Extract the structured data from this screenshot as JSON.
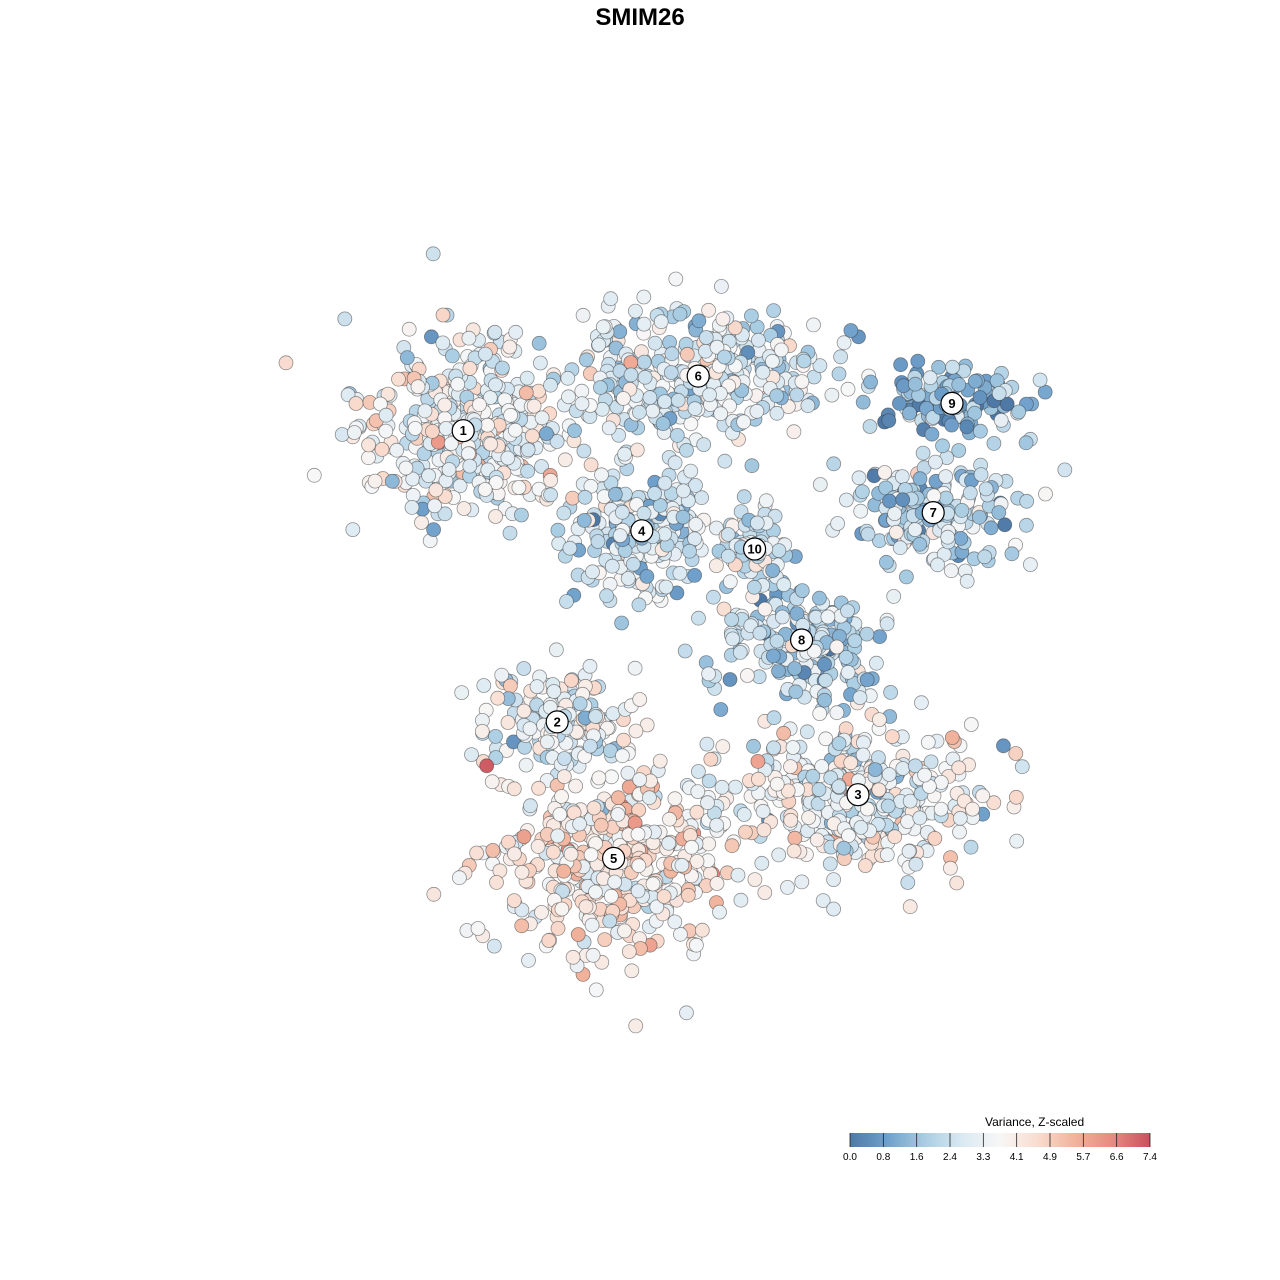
{
  "chart_data": {
    "type": "scatter",
    "title": "SMIM26",
    "legend": {
      "title": "Variance, Z-scaled",
      "placement": "bottom-right",
      "range": [
        0.0,
        7.4
      ],
      "ticks": [
        "0.0",
        "0.8",
        "1.6",
        "2.4",
        "3.3",
        "4.1",
        "4.9",
        "5.7",
        "6.6",
        "7.4"
      ],
      "palette": [
        "#4e79a7",
        "#6fa0cb",
        "#a9cde3",
        "#dbe9f2",
        "#f7f7f7",
        "#f9dccf",
        "#f1b29b",
        "#e78b7f",
        "#c9505e"
      ]
    },
    "clusters": [
      {
        "id": "1",
        "x": 0.28,
        "y": 0.73,
        "mean": 3.3
      },
      {
        "id": "2",
        "x": 0.38,
        "y": 0.41,
        "mean": 3.0
      },
      {
        "id": "3",
        "x": 0.7,
        "y": 0.33,
        "mean": 3.3
      },
      {
        "id": "4",
        "x": 0.47,
        "y": 0.62,
        "mean": 2.6
      },
      {
        "id": "5",
        "x": 0.44,
        "y": 0.26,
        "mean": 4.0
      },
      {
        "id": "6",
        "x": 0.53,
        "y": 0.79,
        "mean": 2.8
      },
      {
        "id": "7",
        "x": 0.78,
        "y": 0.64,
        "mean": 2.2
      },
      {
        "id": "8",
        "x": 0.64,
        "y": 0.5,
        "mean": 2.2
      },
      {
        "id": "9",
        "x": 0.8,
        "y": 0.76,
        "mean": 1.4
      },
      {
        "id": "10",
        "x": 0.59,
        "y": 0.6,
        "mean": 2.8
      }
    ],
    "xlabel": "",
    "ylabel": "",
    "grid": false
  }
}
